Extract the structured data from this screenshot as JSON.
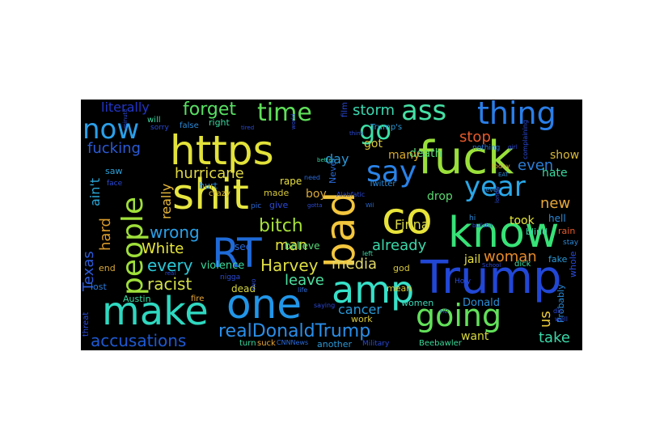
{
  "words": {
    "https": {
      "text": "https",
      "color": "#e2e23a"
    },
    "shit": {
      "text": "shit",
      "color": "#e6e640"
    },
    "fuck": {
      "text": "fuck",
      "color": "#9ae03a"
    },
    "bad": {
      "text": "bad",
      "color": "#f3c63d"
    },
    "co": {
      "text": "co",
      "color": "#e8e43a"
    },
    "know": {
      "text": "know",
      "color": "#37e277"
    },
    "trump": {
      "text": "Trump",
      "color": "#2147d6"
    },
    "amp": {
      "text": "amp",
      "color": "#37e0c8"
    },
    "one": {
      "text": "one",
      "color": "#2196e8"
    },
    "make": {
      "text": "make",
      "color": "#2fd8c0"
    },
    "rt": {
      "text": "RT",
      "color": "#1f6ad8"
    },
    "people": {
      "text": "people",
      "color": "#9fe03a"
    },
    "going": {
      "text": "going",
      "color": "#62e05a"
    },
    "say": {
      "text": "say",
      "color": "#2a83e8"
    },
    "year": {
      "text": "year",
      "color": "#2aa8e8"
    },
    "thing": {
      "text": "thing",
      "color": "#2a7ee8"
    },
    "ass": {
      "text": "ass",
      "color": "#45e0a5"
    },
    "time": {
      "text": "time",
      "color": "#5fe05a"
    },
    "go": {
      "text": "go",
      "color": "#3bdfa6"
    },
    "now": {
      "text": "now",
      "color": "#2b9fe8"
    },
    "realdonaldtrump": {
      "text": "realDonaldTrump",
      "color": "#2a8ee8"
    },
    "accusations": {
      "text": "accusations",
      "color": "#1e5ad3"
    },
    "harvey": {
      "text": "Harvey",
      "color": "#dede44"
    },
    "bitch": {
      "text": "bitch",
      "color": "#a6e03a"
    },
    "forget": {
      "text": "forget",
      "color": "#57e062"
    },
    "literally": {
      "text": "literally",
      "color": "#2236c8"
    },
    "storm": {
      "text": "storm",
      "color": "#3ad8b0"
    },
    "fucking": {
      "text": "fucking",
      "color": "#2a5bd8"
    },
    "hurricane": {
      "text": "hurricane",
      "color": "#dfd845"
    },
    "wrong": {
      "text": "wrong",
      "color": "#2aa0e8"
    },
    "every": {
      "text": "every",
      "color": "#2ac8d8"
    },
    "white": {
      "text": "White",
      "color": "#e8e83a"
    },
    "man": {
      "text": "man",
      "color": "#e8e43a"
    },
    "already": {
      "text": "already",
      "color": "#3ad8a8"
    },
    "media": {
      "text": "media",
      "color": "#e0d86a"
    },
    "leave": {
      "text": "leave",
      "color": "#4ee0a0"
    },
    "racist": {
      "text": "racist",
      "color": "#d4e04a"
    },
    "texas": {
      "text": "Texas",
      "color": "#2a5ad8"
    },
    "aint": {
      "text": "ain't",
      "color": "#2aa8d8"
    },
    "hard": {
      "text": "hard",
      "color": "#d89a2a"
    },
    "really": {
      "text": "really",
      "color": "#e8b83a"
    },
    "finna": {
      "text": "Finna",
      "color": "#d8d84a"
    },
    "woman": {
      "text": "woman",
      "color": "#e88a2a"
    },
    "stop": {
      "text": "stop",
      "color": "#e85a2a"
    },
    "death": {
      "text": "death",
      "color": "#5ad878"
    },
    "got": {
      "text": "got",
      "color": "#d8c83a"
    },
    "day": {
      "text": "day",
      "color": "#2a9ad8"
    },
    "many": {
      "text": "many",
      "color": "#d8a82a"
    },
    "even": {
      "text": "even",
      "color": "#2a7ed8"
    },
    "new": {
      "text": "new",
      "color": "#e8a83a"
    },
    "hate": {
      "text": "hate",
      "color": "#3ad8a0"
    },
    "show": {
      "text": "show",
      "color": "#d8b83a"
    },
    "took": {
      "text": "took",
      "color": "#e8e83a"
    },
    "jail": {
      "text": "jail",
      "color": "#e8e040"
    },
    "drop": {
      "text": "drop",
      "color": "#5ad870"
    },
    "boy": {
      "text": "boy",
      "color": "#d8a83a"
    },
    "us": {
      "text": "us",
      "color": "#e8c83a"
    },
    "want": {
      "text": "want",
      "color": "#d8d83a"
    },
    "take": {
      "text": "take",
      "color": "#3ad8a8"
    },
    "cancer": {
      "text": "cancer",
      "color": "#2a9ad8"
    },
    "donald": {
      "text": "Donald",
      "color": "#2a8ed8"
    },
    "women": {
      "text": "women",
      "color": "#3ad8b8"
    },
    "work": {
      "text": "work",
      "color": "#d8c83a"
    },
    "dead": {
      "text": "dead",
      "color": "#d8d840"
    },
    "violence": {
      "text": "violence",
      "color": "#3ad89a"
    },
    "see": {
      "text": "see",
      "color": "#2a6ad8"
    },
    "believe": {
      "text": "believe",
      "color": "#5ad878"
    },
    "rape": {
      "text": "rape",
      "color": "#e8e040"
    },
    "made": {
      "text": "made",
      "color": "#d8c83a"
    },
    "give": {
      "text": "give",
      "color": "#2a4ad8"
    },
    "crazy": {
      "text": "crazy",
      "color": "#d8b83a"
    },
    "hurt": {
      "text": "hurt",
      "color": "#2a8ad8"
    },
    "lost": {
      "text": "lost",
      "color": "#2a7ad8"
    },
    "end": {
      "text": "end",
      "color": "#d8a83a"
    },
    "austin": {
      "text": "Austin",
      "color": "#3ad8a0"
    },
    "fire": {
      "text": "fire",
      "color": "#e8a83a"
    },
    "saw": {
      "text": "saw",
      "color": "#2aa0d8"
    },
    "hell": {
      "text": "hell",
      "color": "#2a8ad8"
    },
    "fake": {
      "text": "fake",
      "color": "#2a9ad8"
    },
    "blind": {
      "text": "blind",
      "color": "#3ad8a8"
    },
    "rain": {
      "text": "rain",
      "color": "#e85a2a"
    },
    "god": {
      "text": "god",
      "color": "#d8c83a"
    },
    "mean": {
      "text": "mean",
      "color": "#d8c83a"
    },
    "probably": {
      "text": "Probably",
      "color": "#2a8ad8"
    },
    "whole": {
      "text": "whole",
      "color": "#2a4ad8"
    },
    "threat": {
      "text": "threat",
      "color": "#2a4ad8"
    },
    "turn": {
      "text": "turn",
      "color": "#3ad8a0"
    },
    "suck": {
      "text": "suck",
      "color": "#e8a83a"
    },
    "another": {
      "text": "another",
      "color": "#2a9ad8"
    },
    "beebawler": {
      "text": "Beebawler",
      "color": "#3ad898"
    },
    "military": {
      "text": "Military",
      "color": "#2a4ad8"
    },
    "never": {
      "text": "Never",
      "color": "#2a6ad8"
    },
    "twitter": {
      "text": "Twitter",
      "color": "#2a8ad8"
    },
    "trumps": {
      "text": "Trump's",
      "color": "#2a9ad8"
    },
    "nothing": {
      "text": "nothing",
      "color": "#2a7ad8"
    },
    "film": {
      "text": "film",
      "color": "#2a4ad8"
    },
    "will": {
      "text": "will",
      "color": "#3ad8a0"
    },
    "right": {
      "text": "right",
      "color": "#3ad8a0"
    },
    "false": {
      "text": "false",
      "color": "#2a8ad8"
    },
    "sorry": {
      "text": "sorry",
      "color": "#2a4ad8"
    },
    "face": {
      "text": "face",
      "color": "#2a4ad8"
    },
    "nigga": {
      "text": "nigga",
      "color": "#2a4ad8"
    },
    "pic": {
      "text": "pic",
      "color": "#2a6ad8"
    },
    "cnnnews": {
      "text": "CNNNews",
      "color": "#2a6ad8"
    },
    "holy": {
      "text": "Holy",
      "color": "#2a4ad8"
    },
    "today": {
      "text": "today",
      "color": "#d8a83a"
    },
    "hi": {
      "text": "hi",
      "color": "#2a8ad8"
    },
    "stay": {
      "text": "stay",
      "color": "#2a8ad8"
    },
    "level": {
      "text": "level",
      "color": "#2a8ad8"
    },
    "life": {
      "text": "life",
      "color": "#2a6ad8"
    },
    "need": {
      "text": "need",
      "color": "#2a6ad8"
    },
    "left": {
      "text": "left",
      "color": "#3ad8a0"
    },
    "saying": {
      "text": "saying",
      "color": "#2a4ad8"
    },
    "better": {
      "text": "better",
      "color": "#3ad8a0"
    },
    "gotta": {
      "text": "gotta",
      "color": "#2a4ad8"
    },
    "dis": {
      "text": "dis",
      "color": "#2a4ad8"
    },
    "bullshit": {
      "text": "bullshit",
      "color": "#2a4ad8"
    },
    "two": {
      "text": "two",
      "color": "#2a4ad8"
    },
    "school": {
      "text": "School",
      "color": "#2a4ad8"
    },
    "complaining": {
      "text": "complaining",
      "color": "#2a4ad8"
    },
    "minute": {
      "text": "minute",
      "color": "#2a4ad8"
    },
    "world": {
      "text": "world",
      "color": "#2a4ad8"
    },
    "eat": {
      "text": "EAT",
      "color": "#2a8ad8"
    },
    "girl": {
      "text": "girl",
      "color": "#2a4ad8"
    },
    "wil": {
      "text": "Wil",
      "color": "#2a6ad8"
    },
    "lonely": {
      "text": "lonely",
      "color": "#2a4ad8"
    },
    "dick": {
      "text": "dick",
      "color": "#3ad8a0"
    },
    "well": {
      "text": "well",
      "color": "#2a4ad8"
    },
    "alabfatic": {
      "text": "Alabfatic",
      "color": "#2a4ad8"
    },
    "real": {
      "text": "real",
      "color": "#2a4ad8"
    },
    "tired": {
      "text": "tired",
      "color": "#2a4ad8"
    },
    "think": {
      "text": "think",
      "color": "#2a4ad8"
    },
    "hd": {
      "text": "HD",
      "color": "#2a4ad8"
    }
  }
}
